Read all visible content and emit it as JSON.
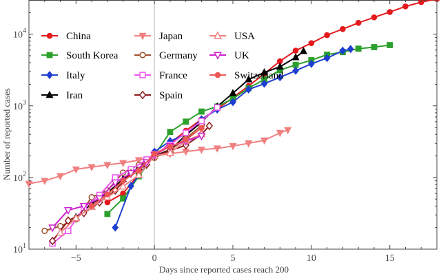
{
  "chart_data": {
    "type": "line",
    "xlabel": "Days since reported cases reach 200",
    "ylabel": "Number of reported cases",
    "xlim": [
      -8,
      18
    ],
    "ylim": [
      10,
      30000
    ],
    "y_scale": "log",
    "x_ticks": [
      -5,
      0,
      5,
      10,
      15
    ],
    "y_ticks": [
      {
        "value": 10,
        "base": "10",
        "exp": "1"
      },
      {
        "value": 100,
        "base": "10",
        "exp": "2"
      },
      {
        "value": 1000,
        "base": "10",
        "exp": "3"
      },
      {
        "value": 10000,
        "base": "10",
        "exp": "4"
      }
    ],
    "grid": false,
    "legend_position": "top-left",
    "series": [
      {
        "name": "China",
        "color": "#e41a1c",
        "marker": "circle",
        "x": [
          -3,
          -2,
          -1,
          0,
          1,
          2,
          3,
          4,
          5,
          6,
          7,
          8,
          9,
          10,
          11,
          12,
          13,
          14,
          15,
          16,
          17,
          18
        ],
        "y": [
          45,
          60,
          110,
          200,
          300,
          450,
          650,
          900,
          1300,
          1900,
          2800,
          4200,
          5900,
          7500,
          9700,
          11800,
          14400,
          17200,
          20400,
          24400,
          28000,
          31000
        ]
      },
      {
        "name": "South Korea",
        "color": "#2ca02c",
        "marker": "square",
        "x": [
          -3,
          -2,
          -1,
          0,
          1,
          2,
          3,
          4,
          5,
          6,
          7,
          8,
          9,
          10,
          11,
          12,
          13,
          14,
          15
        ],
        "y": [
          31,
          51,
          104,
          204,
          433,
          602,
          833,
          977,
          1261,
          1766,
          2337,
          3150,
          3736,
          4335,
          5186,
          5621,
          6284,
          6593,
          7041
        ]
      },
      {
        "name": "Italy",
        "color": "#1f3fd0",
        "marker": "diamond",
        "x": [
          -2.5,
          -1.5,
          -0.5,
          0,
          1,
          2,
          3,
          4,
          5,
          6,
          7,
          8,
          9,
          10,
          11,
          12,
          12.5
        ],
        "y": [
          20,
          76,
          152,
          229,
          322,
          400,
          650,
          888,
          1128,
          1694,
          2036,
          2502,
          3089,
          3858,
          4636,
          5883,
          6200
        ]
      },
      {
        "name": "Iran",
        "color": "#000000",
        "marker": "triangle",
        "x": [
          -5,
          -4,
          -3,
          -2,
          -1,
          0,
          1,
          2,
          3,
          4,
          5,
          6,
          7,
          8,
          9,
          9.5
        ],
        "y": [
          28,
          43,
          61,
          95,
          139,
          200,
          245,
          388,
          593,
          978,
          1501,
          2336,
          2922,
          3513,
          4747,
          5800
        ]
      },
      {
        "name": "Japan",
        "color": "#f08080",
        "marker": "triangle-down",
        "x": [
          -8,
          -7,
          -6,
          -5,
          -4,
          -3,
          -2,
          -1,
          0,
          1,
          2,
          3,
          4,
          5,
          6,
          7,
          8,
          8.5
        ],
        "y": [
          82,
          90,
          105,
          130,
          140,
          150,
          160,
          175,
          200,
          215,
          230,
          245,
          255,
          275,
          300,
          330,
          420,
          460
        ]
      },
      {
        "name": "Germany",
        "color": "#a0522d",
        "marker": "circle-open",
        "x": [
          -7,
          -6,
          -5,
          -4,
          -3,
          -2,
          -1,
          0,
          1,
          2,
          3
        ],
        "y": [
          18,
          21,
          26,
          53,
          66,
          117,
          150,
          188,
          240,
          349,
          534
        ]
      },
      {
        "name": "France",
        "color": "#ee55ee",
        "marker": "square-open",
        "x": [
          -6.5,
          -5.5,
          -4.5,
          -3.5,
          -2.5,
          -1.5,
          -0.5,
          0,
          1,
          2,
          3,
          4
        ],
        "y": [
          12,
          18,
          38,
          57,
          100,
          130,
          178,
          212,
          285,
          420,
          613,
          949
        ]
      },
      {
        "name": "Spain",
        "color": "#8b1a1a",
        "marker": "diamond-open",
        "x": [
          -6.5,
          -5.5,
          -4.5,
          -3.5,
          -2.5,
          -1.5,
          -0.5,
          0,
          1,
          2,
          3,
          3.5
        ],
        "y": [
          13,
          25,
          32,
          45,
          66,
          114,
          151,
          200,
          237,
          282,
          401,
          525
        ]
      },
      {
        "name": "USA",
        "color": "#f08080",
        "marker": "triangle-open",
        "x": [
          -6,
          -5,
          -4,
          -3,
          -2,
          -1,
          0,
          1,
          2,
          3
        ],
        "y": [
          17,
          27,
          39,
          53,
          75,
          108,
          200,
          221,
          325,
          402
        ]
      },
      {
        "name": "UK",
        "color": "#cc22cc",
        "marker": "triangle-down-open",
        "x": [
          -6.5,
          -5.5,
          -4.5,
          -3.5,
          -2.5,
          -1.5,
          -0.5,
          0,
          1,
          2,
          3
        ],
        "y": [
          20,
          35,
          40,
          51,
          85,
          115,
          163,
          206,
          273,
          321,
          382
        ]
      },
      {
        "name": "Switzerland",
        "color": "#ee5555",
        "marker": "circle",
        "x": [
          -4,
          -3,
          -2,
          -1,
          0,
          1,
          2,
          3
        ],
        "y": [
          40,
          58,
          90,
          125,
          214,
          268,
          337,
          491
        ]
      }
    ]
  }
}
